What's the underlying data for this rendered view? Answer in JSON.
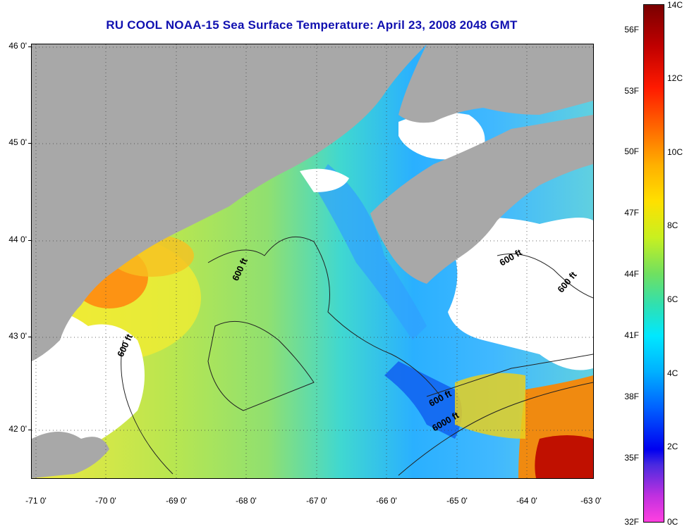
{
  "title": "RU COOL  NOAA-15  Sea Surface Temperature:  April 23, 2008 2048 GMT",
  "map": {
    "lat_labels": [
      "46 0'",
      "45 0'",
      "44 0'",
      "43 0'",
      "42 0'"
    ],
    "lon_labels": [
      "-71 0'",
      "-70 0'",
      "-69 0'",
      "-68 0'",
      "-67 0'",
      "-66 0'",
      "-65 0'",
      "-64 0'",
      "-63 0'"
    ],
    "lat_range": [
      41.5,
      46.0
    ],
    "lon_range": [
      -71.0,
      -63.0
    ],
    "land_color": "#a8a8a8",
    "cloud_color": "#ffffff",
    "contour_labels": [
      {
        "text": "600 ft"
      },
      {
        "text": "600 ft"
      },
      {
        "text": "600 ft"
      },
      {
        "text": "600 ft"
      },
      {
        "text": "600 ft"
      },
      {
        "text": "6000 ft"
      }
    ]
  },
  "colorbar": {
    "fahrenheit": [
      "56F",
      "53F",
      "50F",
      "47F",
      "44F",
      "41F",
      "38F",
      "35F",
      "32F"
    ],
    "celsius": [
      "14C",
      "12C",
      "10C",
      "8C",
      "6C",
      "4C",
      "2C",
      "0C"
    ]
  }
}
